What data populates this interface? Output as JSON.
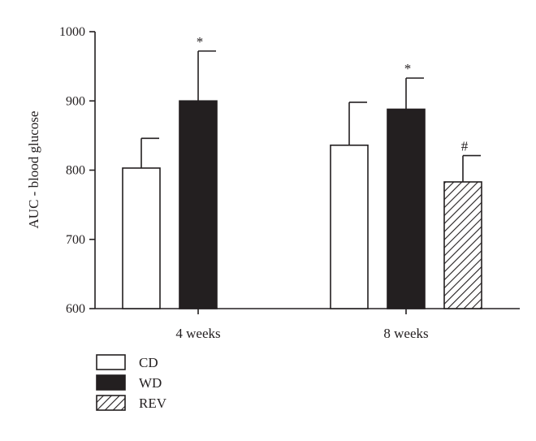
{
  "chart_data": {
    "type": "bar",
    "title": "",
    "xlabel": "",
    "ylabel": "AUC - blood glucose",
    "ylim": [
      600,
      1000
    ],
    "yticks": [
      600,
      700,
      800,
      900,
      1000
    ],
    "grid": false,
    "categories": [
      "4 weeks",
      "8 weeks"
    ],
    "series": [
      {
        "name": "CD",
        "fill": "white",
        "values": [
          803,
          836
        ],
        "errors": [
          43,
          62
        ],
        "annotations": [
          "",
          ""
        ]
      },
      {
        "name": "WD",
        "fill": "black",
        "values": [
          900,
          888
        ],
        "errors": [
          72,
          45
        ],
        "annotations": [
          "*",
          "*"
        ]
      },
      {
        "name": "REV",
        "fill": "hatched",
        "values": [
          null,
          783
        ],
        "errors": [
          null,
          38
        ],
        "annotations": [
          "",
          "#"
        ]
      }
    ],
    "legend_position": "bottom-left"
  }
}
